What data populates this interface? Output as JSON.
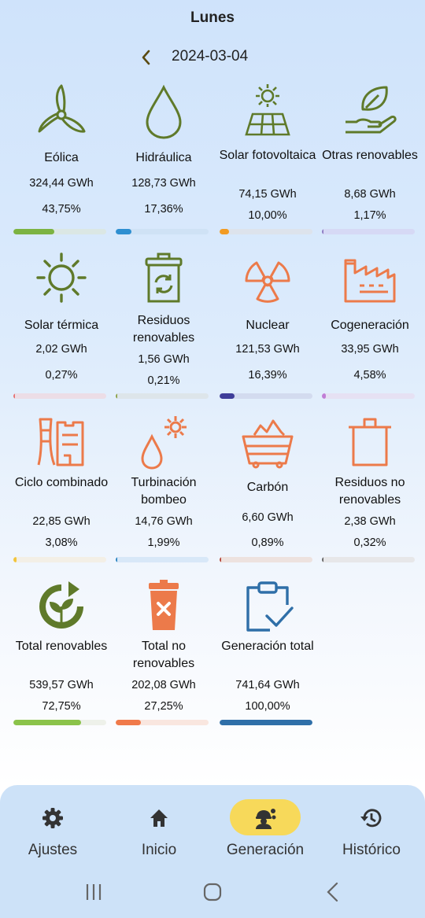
{
  "header": {
    "day": "Lunes",
    "date": "2024-03-04"
  },
  "tiles": [
    {
      "name": "Eólica",
      "energy": "324,44 GWh",
      "percent": "43,75%",
      "share": 0.4375,
      "color": "#7cb342",
      "track": "#dbe7e4",
      "icon": "wind-turbine-icon"
    },
    {
      "name": "Hidráulica",
      "energy": "128,73 GWh",
      "percent": "17,36%",
      "share": 0.1736,
      "color": "#2e8fd1",
      "track": "#cfe2f5",
      "icon": "water-drop-icon"
    },
    {
      "name": "Solar fotovoltaica",
      "energy": "74,15 GWh",
      "percent": "10,00%",
      "share": 0.1,
      "color": "#f29b22",
      "track": "#dde3ec",
      "icon": "solar-panel-icon"
    },
    {
      "name": "Otras renovables",
      "energy": "8,68 GWh",
      "percent": "1,17%",
      "share": 0.0117,
      "color": "#8e7cc3",
      "track": "#d6d9f5",
      "icon": "leaf-hand-icon"
    },
    {
      "name": "Solar térmica",
      "energy": "2,02 GWh",
      "percent": "0,27%",
      "share": 0.0027,
      "color": "#e57373",
      "track": "#ecdde6",
      "icon": "sun-icon"
    },
    {
      "name": "Residuos renovables",
      "energy": "1,56 GWh",
      "percent": "0,21%",
      "share": 0.0021,
      "color": "#8ea34a",
      "track": "#dde5ea",
      "icon": "recycle-bin-icon"
    },
    {
      "name": "Nuclear",
      "energy": "121,53 GWh",
      "percent": "16,39%",
      "share": 0.1639,
      "color": "#3f3d99",
      "track": "#d3dbef",
      "icon": "radiation-icon"
    },
    {
      "name": "Cogeneración",
      "energy": "33,95 GWh",
      "percent": "4,58%",
      "share": 0.0458,
      "color": "#c17ed6",
      "track": "#e6e1f3",
      "icon": "factory-icon"
    },
    {
      "name": "Ciclo combinado",
      "energy": "22,85 GWh",
      "percent": "3,08%",
      "share": 0.0308,
      "color": "#f2c53d",
      "track": "#f3efe6",
      "icon": "power-plant-icon"
    },
    {
      "name": "Turbinación bombeo",
      "energy": "14,76 GWh",
      "percent": "1,99%",
      "share": 0.0199,
      "color": "#2e86c1",
      "track": "#d8e8f8",
      "icon": "drop-gear-icon"
    },
    {
      "name": "Carbón",
      "energy": "6,60 GWh",
      "percent": "0,89%",
      "share": 0.0089,
      "color": "#b5473a",
      "track": "#ede2df",
      "icon": "coal-cart-icon"
    },
    {
      "name": "Residuos no renovables",
      "energy": "2,38 GWh",
      "percent": "0,32%",
      "share": 0.0032,
      "color": "#666666",
      "track": "#e7e7e9",
      "icon": "trash-can-icon"
    },
    {
      "name": "Total renovables",
      "energy": "539,57 GWh",
      "percent": "72,75%",
      "share": 0.7275,
      "color": "#8bc34a",
      "track": "#eef1ea",
      "icon": "recycle-plant-icon"
    },
    {
      "name": "Total no renovables",
      "energy": "202,08 GWh",
      "percent": "27,25%",
      "share": 0.2725,
      "color": "#f07a4a",
      "track": "#f9e6df",
      "icon": "delete-bin-icon"
    },
    {
      "name": "Generación total",
      "energy": "741,64 GWh",
      "percent": "100,00%",
      "share": 1.0,
      "color": "#2f6fa8",
      "track": "#e6ecf3",
      "icon": "clipboard-check-icon"
    }
  ],
  "nav": [
    {
      "label": "Ajustes",
      "icon": "gear-icon",
      "active": false
    },
    {
      "label": "Inicio",
      "icon": "home-icon",
      "active": false
    },
    {
      "label": "Generación",
      "icon": "worker-gears-icon",
      "active": true
    },
    {
      "label": "Histórico",
      "icon": "history-icon",
      "active": false
    }
  ]
}
